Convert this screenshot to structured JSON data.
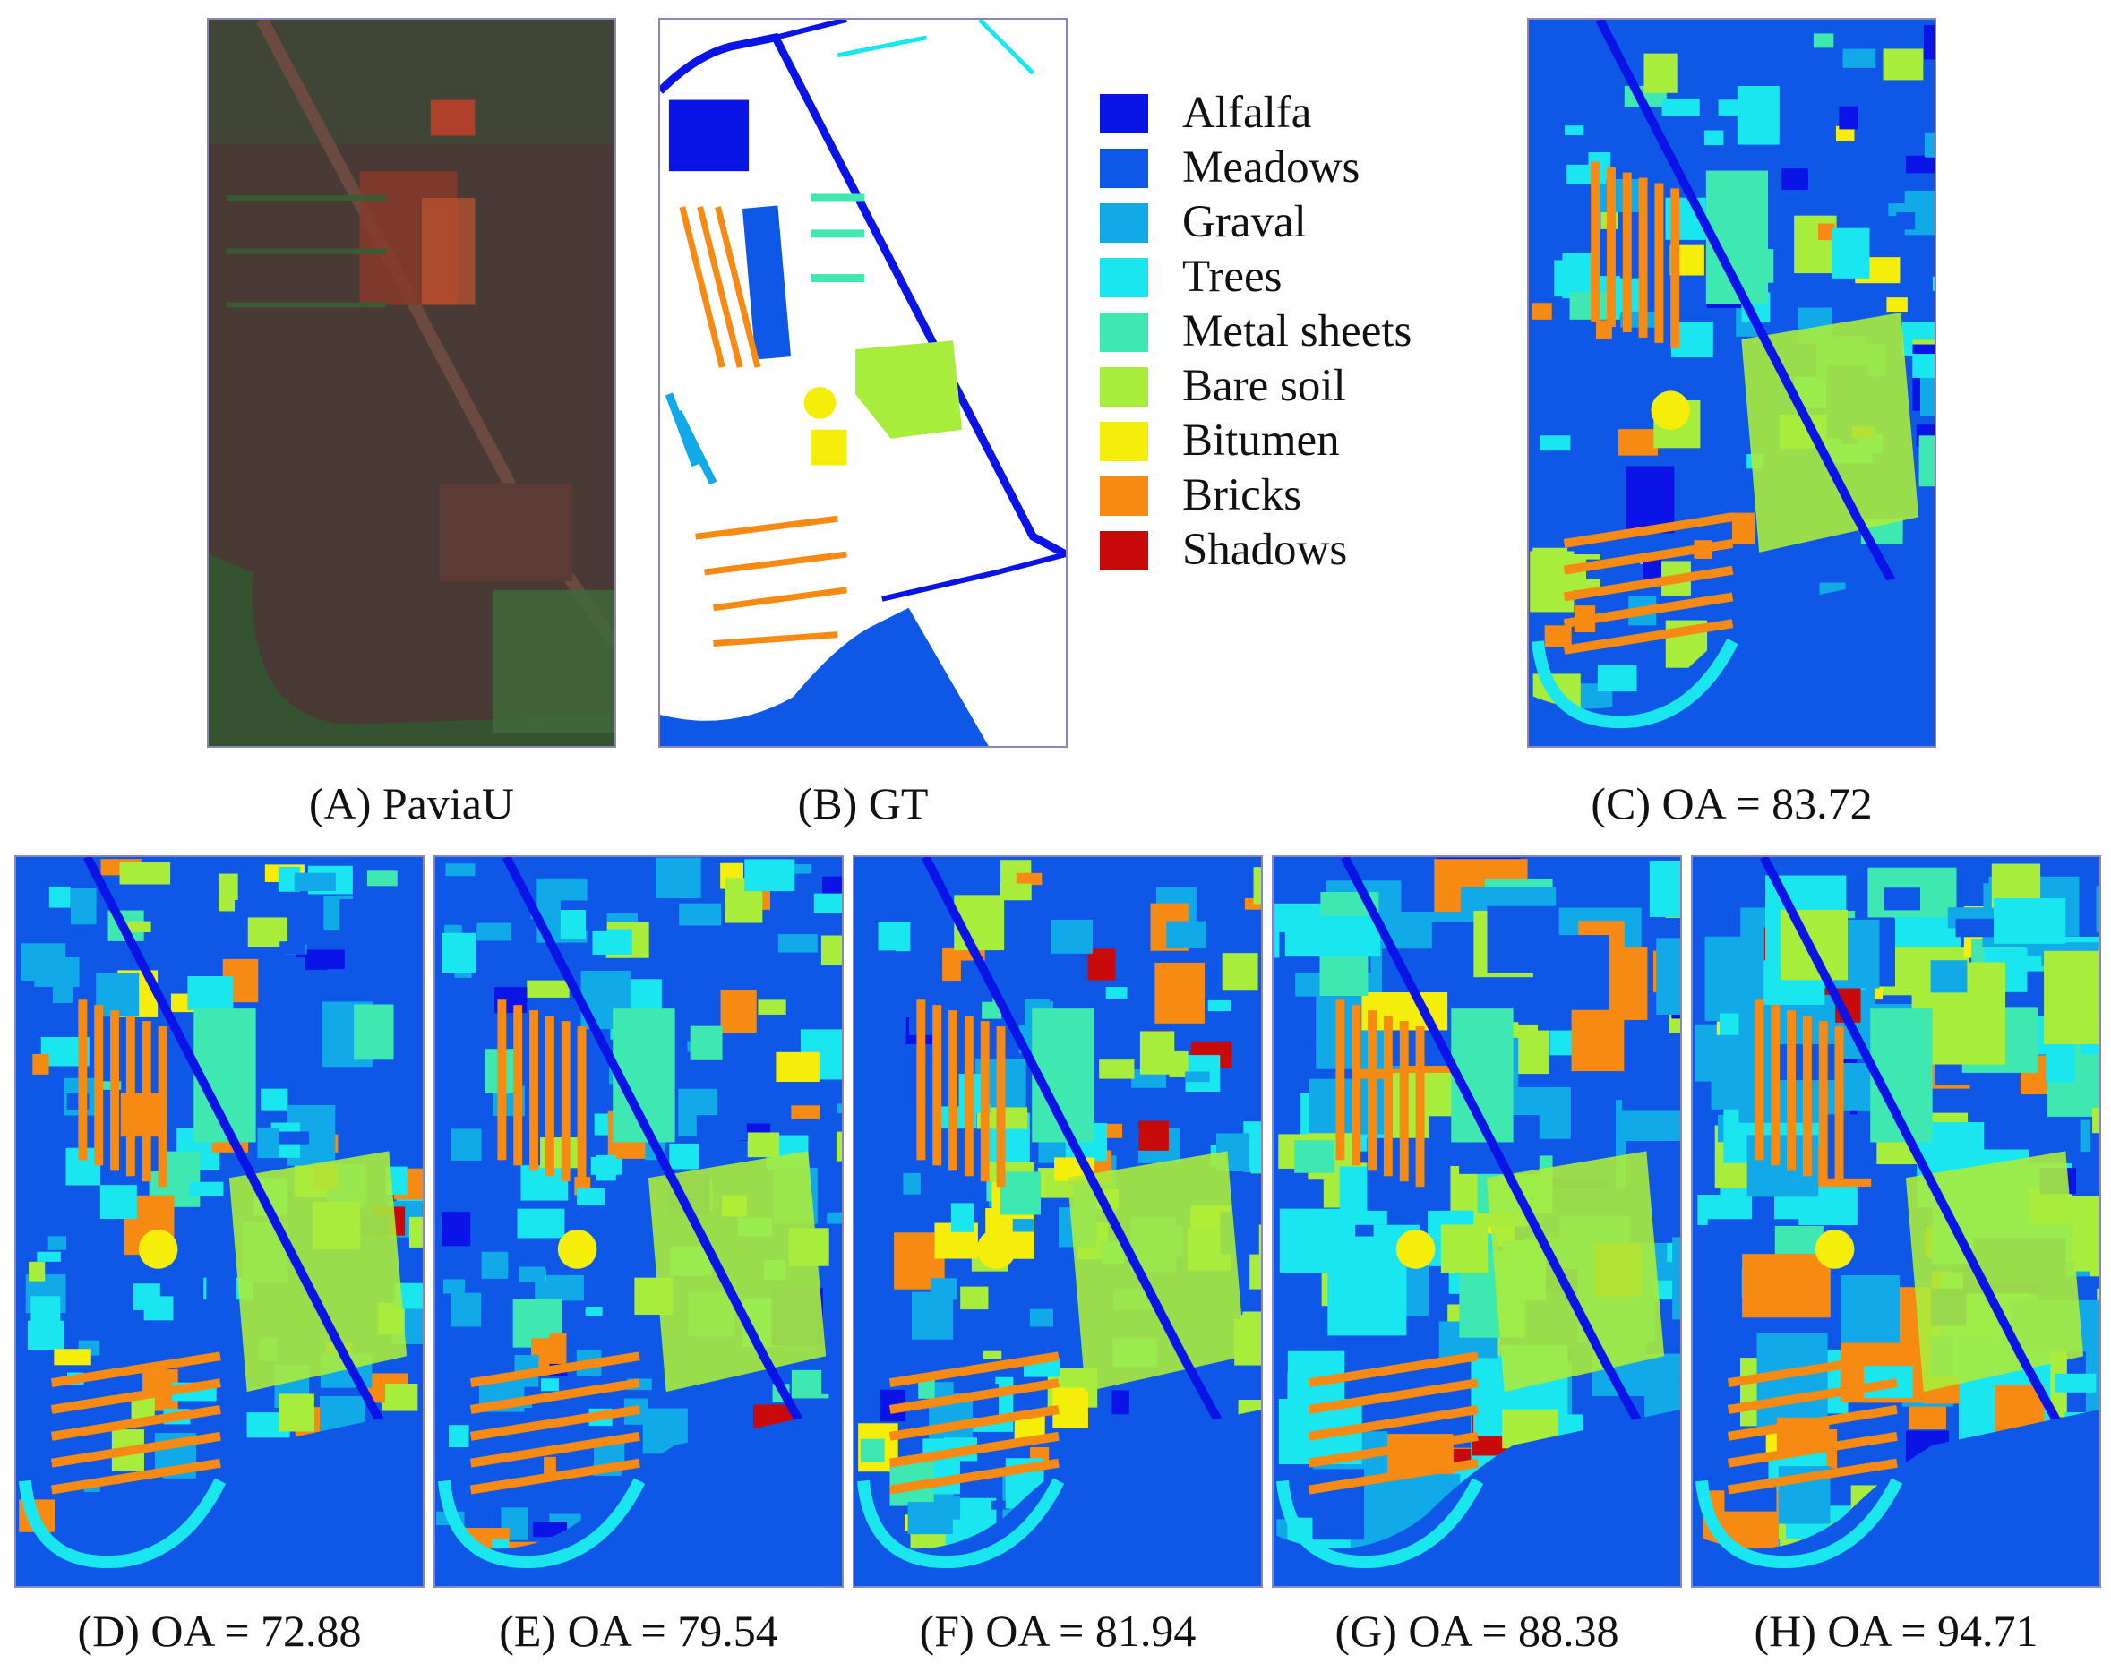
{
  "panels": [
    {
      "id": "A",
      "caption": "(A) PaviaU"
    },
    {
      "id": "B",
      "caption": "(B) GT"
    },
    {
      "id": "C",
      "caption": "(C) OA = 83.72"
    },
    {
      "id": "D",
      "caption": "(D) OA = 72.88"
    },
    {
      "id": "E",
      "caption": "(E) OA = 79.54"
    },
    {
      "id": "F",
      "caption": "(F) OA = 81.94"
    },
    {
      "id": "G",
      "caption": "(G) OA = 88.38"
    },
    {
      "id": "H",
      "caption": "(H) OA = 94.71"
    }
  ],
  "legend": [
    {
      "label": "Alfalfa",
      "color": "#0a14e6"
    },
    {
      "label": "Meadows",
      "color": "#0f57e6"
    },
    {
      "label": "Graval",
      "color": "#12a9e8"
    },
    {
      "label": "Trees",
      "color": "#1ae6f0"
    },
    {
      "label": "Metal sheets",
      "color": "#3fe8b0"
    },
    {
      "label": "Bare soil",
      "color": "#a8ec3c"
    },
    {
      "label": "Bitumen",
      "color": "#f5ee0a"
    },
    {
      "label": "Bricks",
      "color": "#f78a12"
    },
    {
      "label": "Shadows",
      "color": "#c80a0a"
    }
  ],
  "colors": {
    "frame": "#8a86b8",
    "rgb_base": "#4a3a36",
    "rgb_vegetation": "#3f6a3a",
    "rgb_roof": "#c2542e"
  }
}
